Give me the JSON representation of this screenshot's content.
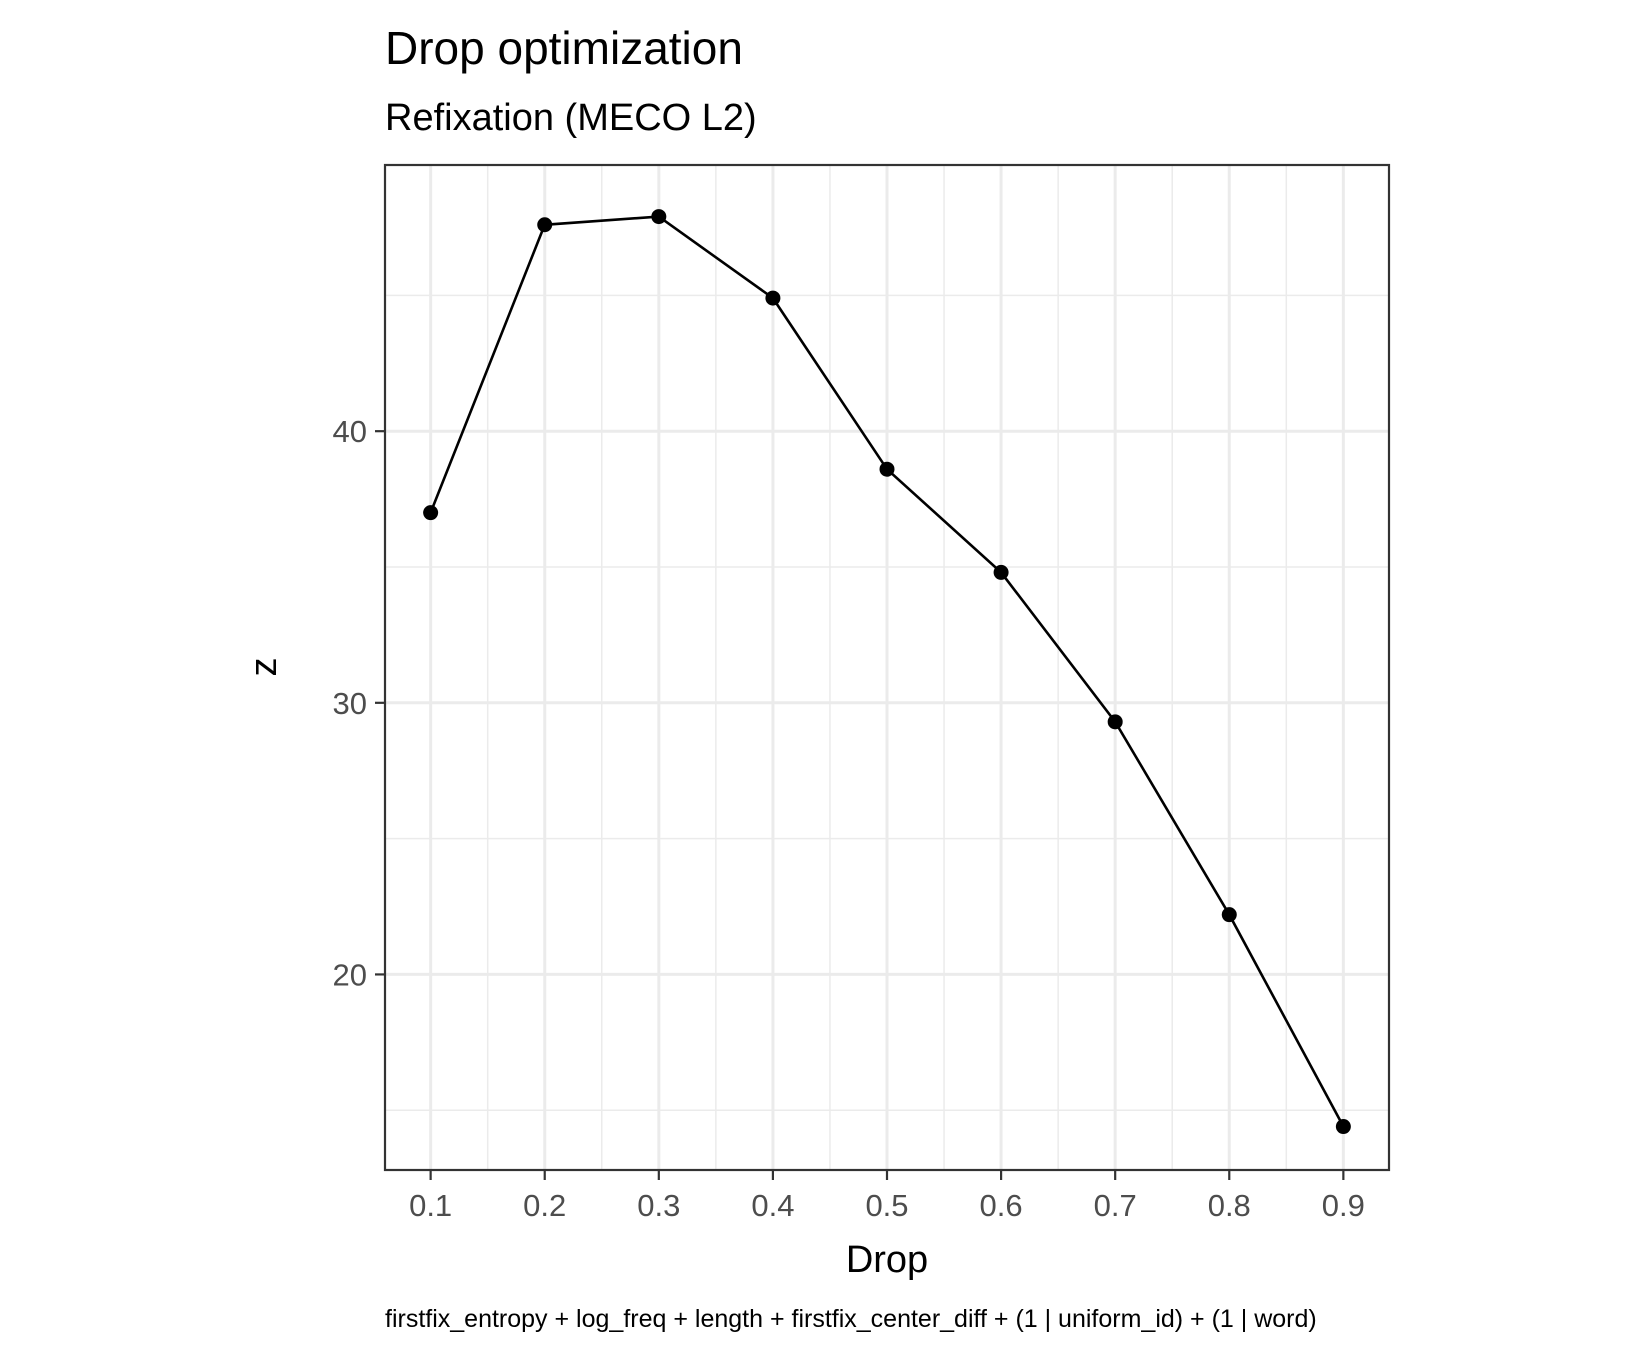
{
  "chart_data": {
    "type": "line",
    "title": "Drop optimization",
    "subtitle": "Refixation (MECO L2)",
    "xlabel": "Drop",
    "ylabel": "z",
    "caption": "firstfix_entropy + log_freq + length + firstfix_center_diff + (1 | uniform_id) + (1 | word)",
    "x": [
      0.1,
      0.2,
      0.3,
      0.4,
      0.5,
      0.6,
      0.7,
      0.8,
      0.9
    ],
    "y": [
      37.0,
      47.6,
      47.9,
      44.9,
      38.6,
      34.8,
      29.3,
      22.2,
      14.4
    ],
    "x_ticks": [
      "0.1",
      "0.2",
      "0.3",
      "0.4",
      "0.5",
      "0.6",
      "0.7",
      "0.8",
      "0.9"
    ],
    "y_ticks": [
      "20",
      "30",
      "40"
    ],
    "xlim": [
      0.06,
      0.94
    ],
    "ylim": [
      12.8,
      49.8
    ],
    "grid": true,
    "legend": "none",
    "colors": {
      "line": "#000000",
      "points": "#000000",
      "grid": "#ebebeb",
      "panel_border": "#333333",
      "tick_text": "#4d4d4d"
    }
  }
}
